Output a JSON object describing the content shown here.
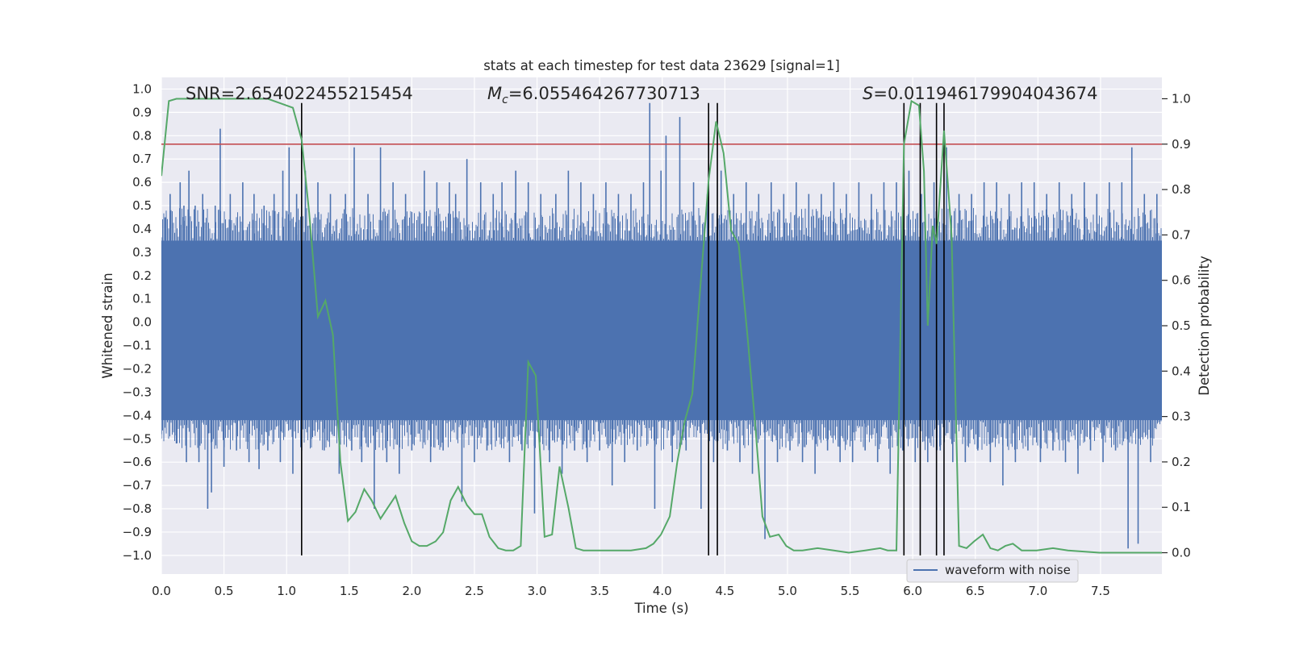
{
  "chart_data": {
    "type": "line",
    "title": "stats at each timestep for test data 23629 [signal=1]",
    "xlabel": "Time (s)",
    "ylabel": "Whitened strain",
    "y2label": "Detection probability",
    "xlim": [
      0,
      7.99
    ],
    "ylim": [
      -1.08,
      1.05
    ],
    "y2lim": [
      -0.047,
      1.047
    ],
    "x_ticks": [
      0.0,
      0.5,
      1.0,
      1.5,
      2.0,
      2.5,
      3.0,
      3.5,
      4.0,
      4.5,
      5.0,
      5.5,
      6.0,
      6.5,
      7.0,
      7.5
    ],
    "x_tick_labels": [
      "0.0",
      "0.5",
      "1.0",
      "1.5",
      "2.0",
      "2.5",
      "3.0",
      "3.5",
      "4.0",
      "4.5",
      "5.0",
      "5.5",
      "6.0",
      "6.5",
      "7.0",
      "7.5"
    ],
    "y_ticks": [
      1.0,
      0.9,
      0.8,
      0.7,
      0.6,
      0.5,
      0.4,
      0.3,
      0.2,
      0.1,
      0.0,
      -0.1,
      -0.2,
      -0.3,
      -0.4,
      -0.5,
      -0.6,
      -0.7,
      -0.8,
      -0.9,
      -1.0
    ],
    "y_tick_labels": [
      "1.0",
      "0.9",
      "0.8",
      "0.7",
      "0.6",
      "0.5",
      "0.4",
      "0.3",
      "0.2",
      "0.1",
      "0.0",
      "−0.1",
      "−0.2",
      "−0.3",
      "−0.4",
      "−0.5",
      "−0.6",
      "−0.7",
      "−0.8",
      "−0.9",
      "−1.0"
    ],
    "y2_ticks": [
      1.0,
      0.9,
      0.8,
      0.7,
      0.6,
      0.5,
      0.4,
      0.3,
      0.2,
      0.1,
      0.0
    ],
    "y2_tick_labels": [
      "1.0",
      "0.9",
      "0.8",
      "0.7",
      "0.6",
      "0.5",
      "0.4",
      "0.3",
      "0.2",
      "0.1",
      "0.0"
    ],
    "grid": true,
    "legend": {
      "position": "bottom-right",
      "entries": [
        "waveform with noise"
      ]
    },
    "annotations": {
      "snr": "SNR=2.654022455215454",
      "mc_symbol": "M",
      "mc_sub": "c",
      "mc_value": "=6.055464267730713",
      "s_symbol": "S",
      "s_value": "=0.011946179904043674"
    },
    "threshold": {
      "value": 0.9,
      "axis": "y2",
      "color": "#c44e52"
    },
    "vertical_markers": [
      1.12,
      4.37,
      4.44,
      5.93,
      6.06,
      6.19,
      6.25
    ],
    "vertical_marker_range": [
      -1.0,
      0.94
    ],
    "waveform": {
      "name": "waveform with noise",
      "color": "#4c72b0",
      "band_upper": 0.35,
      "band_lower": -0.42,
      "spikes": [
        {
          "t": 0.0,
          "v": -0.48
        },
        {
          "t": 0.03,
          "v": 0.45
        },
        {
          "t": 0.07,
          "v": 0.55
        },
        {
          "t": 0.12,
          "v": -0.52
        },
        {
          "t": 0.15,
          "v": 0.6
        },
        {
          "t": 0.18,
          "v": 0.5
        },
        {
          "t": 0.2,
          "v": -0.6
        },
        {
          "t": 0.22,
          "v": 0.65
        },
        {
          "t": 0.27,
          "v": 0.5
        },
        {
          "t": 0.3,
          "v": -0.6
        },
        {
          "t": 0.33,
          "v": 0.55
        },
        {
          "t": 0.37,
          "v": -0.8
        },
        {
          "t": 0.4,
          "v": -0.73
        },
        {
          "t": 0.43,
          "v": 0.5
        },
        {
          "t": 0.47,
          "v": 0.83
        },
        {
          "t": 0.5,
          "v": -0.62
        },
        {
          "t": 0.55,
          "v": 0.55
        },
        {
          "t": 0.6,
          "v": -0.55
        },
        {
          "t": 0.65,
          "v": 0.6
        },
        {
          "t": 0.7,
          "v": -0.6
        },
        {
          "t": 0.74,
          "v": 0.55
        },
        {
          "t": 0.78,
          "v": -0.63
        },
        {
          "t": 0.82,
          "v": 0.5
        },
        {
          "t": 0.85,
          "v": -0.55
        },
        {
          "t": 0.9,
          "v": 0.55
        },
        {
          "t": 0.95,
          "v": -0.6
        },
        {
          "t": 0.97,
          "v": 0.65
        },
        {
          "t": 1.02,
          "v": 0.75
        },
        {
          "t": 1.05,
          "v": -0.65
        },
        {
          "t": 1.08,
          "v": 0.55
        },
        {
          "t": 1.12,
          "v": -0.55
        },
        {
          "t": 1.15,
          "v": 0.65
        },
        {
          "t": 1.2,
          "v": -0.5
        },
        {
          "t": 1.25,
          "v": 0.6
        },
        {
          "t": 1.3,
          "v": -0.55
        },
        {
          "t": 1.35,
          "v": 0.55
        },
        {
          "t": 1.42,
          "v": -0.65
        },
        {
          "t": 1.47,
          "v": 0.55
        },
        {
          "t": 1.52,
          "v": -0.55
        },
        {
          "t": 1.54,
          "v": 0.75
        },
        {
          "t": 1.6,
          "v": -0.6
        },
        {
          "t": 1.65,
          "v": 0.55
        },
        {
          "t": 1.7,
          "v": -0.8
        },
        {
          "t": 1.75,
          "v": 0.75
        },
        {
          "t": 1.8,
          "v": -0.6
        },
        {
          "t": 1.85,
          "v": 0.6
        },
        {
          "t": 1.9,
          "v": -0.65
        },
        {
          "t": 1.95,
          "v": 0.55
        },
        {
          "t": 2.0,
          "v": -0.55
        },
        {
          "t": 2.1,
          "v": 0.65
        },
        {
          "t": 2.15,
          "v": -0.6
        },
        {
          "t": 2.2,
          "v": 0.6
        },
        {
          "t": 2.25,
          "v": -0.55
        },
        {
          "t": 2.3,
          "v": 0.6
        },
        {
          "t": 2.35,
          "v": 0.55
        },
        {
          "t": 2.4,
          "v": -0.77
        },
        {
          "t": 2.44,
          "v": 0.7
        },
        {
          "t": 2.5,
          "v": -0.6
        },
        {
          "t": 2.55,
          "v": 0.6
        },
        {
          "t": 2.6,
          "v": -0.55
        },
        {
          "t": 2.65,
          "v": 0.55
        },
        {
          "t": 2.72,
          "v": 0.6
        },
        {
          "t": 2.78,
          "v": -0.6
        },
        {
          "t": 2.83,
          "v": 0.65
        },
        {
          "t": 2.88,
          "v": -0.55
        },
        {
          "t": 2.93,
          "v": 0.6
        },
        {
          "t": 2.98,
          "v": -0.82
        },
        {
          "t": 3.03,
          "v": 0.55
        },
        {
          "t": 3.1,
          "v": -0.6
        },
        {
          "t": 3.15,
          "v": 0.55
        },
        {
          "t": 3.2,
          "v": -0.65
        },
        {
          "t": 3.25,
          "v": 0.65
        },
        {
          "t": 3.3,
          "v": -0.55
        },
        {
          "t": 3.35,
          "v": 0.6
        },
        {
          "t": 3.4,
          "v": -0.6
        },
        {
          "t": 3.45,
          "v": 0.55
        },
        {
          "t": 3.5,
          "v": -0.55
        },
        {
          "t": 3.55,
          "v": 0.6
        },
        {
          "t": 3.6,
          "v": -0.7
        },
        {
          "t": 3.65,
          "v": 0.55
        },
        {
          "t": 3.7,
          "v": -0.6
        },
        {
          "t": 3.75,
          "v": 0.55
        },
        {
          "t": 3.8,
          "v": -0.55
        },
        {
          "t": 3.85,
          "v": 0.6
        },
        {
          "t": 3.9,
          "v": 0.94
        },
        {
          "t": 3.94,
          "v": -0.8
        },
        {
          "t": 3.99,
          "v": 0.65
        },
        {
          "t": 4.03,
          "v": 0.8
        },
        {
          "t": 4.08,
          "v": -0.6
        },
        {
          "t": 4.14,
          "v": 0.88
        },
        {
          "t": 4.19,
          "v": -0.55
        },
        {
          "t": 4.25,
          "v": 0.6
        },
        {
          "t": 4.31,
          "v": -0.8
        },
        {
          "t": 4.36,
          "v": 0.55
        },
        {
          "t": 4.41,
          "v": -0.6
        },
        {
          "t": 4.47,
          "v": 0.65
        },
        {
          "t": 4.52,
          "v": -0.55
        },
        {
          "t": 4.57,
          "v": 0.55
        },
        {
          "t": 4.62,
          "v": -0.6
        },
        {
          "t": 4.67,
          "v": 0.6
        },
        {
          "t": 4.72,
          "v": -0.65
        },
        {
          "t": 4.77,
          "v": 0.55
        },
        {
          "t": 4.82,
          "v": -0.93
        },
        {
          "t": 4.87,
          "v": 0.6
        },
        {
          "t": 4.92,
          "v": -0.6
        },
        {
          "t": 4.97,
          "v": 0.55
        },
        {
          "t": 5.02,
          "v": -0.55
        },
        {
          "t": 5.07,
          "v": 0.6
        },
        {
          "t": 5.12,
          "v": -0.6
        },
        {
          "t": 5.17,
          "v": 0.55
        },
        {
          "t": 5.22,
          "v": -0.65
        },
        {
          "t": 5.27,
          "v": 0.55
        },
        {
          "t": 5.32,
          "v": -0.55
        },
        {
          "t": 5.37,
          "v": 0.6
        },
        {
          "t": 5.42,
          "v": -0.6
        },
        {
          "t": 5.47,
          "v": 0.55
        },
        {
          "t": 5.52,
          "v": -0.6
        },
        {
          "t": 5.57,
          "v": 0.6
        },
        {
          "t": 5.62,
          "v": -0.55
        },
        {
          "t": 5.67,
          "v": 0.55
        },
        {
          "t": 5.72,
          "v": -0.6
        },
        {
          "t": 5.77,
          "v": 0.6
        },
        {
          "t": 5.82,
          "v": -0.65
        },
        {
          "t": 5.87,
          "v": 0.6
        },
        {
          "t": 5.92,
          "v": -0.55
        },
        {
          "t": 5.97,
          "v": 0.65
        },
        {
          "t": 6.02,
          "v": -0.6
        },
        {
          "t": 6.07,
          "v": 0.55
        },
        {
          "t": 6.12,
          "v": -0.6
        },
        {
          "t": 6.17,
          "v": 0.6
        },
        {
          "t": 6.22,
          "v": -0.55
        },
        {
          "t": 6.27,
          "v": 0.75
        },
        {
          "t": 6.32,
          "v": -0.6
        },
        {
          "t": 6.37,
          "v": 0.55
        },
        {
          "t": 6.42,
          "v": -0.6
        },
        {
          "t": 6.47,
          "v": 0.55
        },
        {
          "t": 6.52,
          "v": -0.55
        },
        {
          "t": 6.57,
          "v": 0.6
        },
        {
          "t": 6.62,
          "v": -0.6
        },
        {
          "t": 6.67,
          "v": 0.6
        },
        {
          "t": 6.72,
          "v": -0.7
        },
        {
          "t": 6.77,
          "v": 0.55
        },
        {
          "t": 6.82,
          "v": -0.6
        },
        {
          "t": 6.87,
          "v": 0.6
        },
        {
          "t": 6.92,
          "v": -0.55
        },
        {
          "t": 6.97,
          "v": 0.6
        },
        {
          "t": 7.02,
          "v": -0.6
        },
        {
          "t": 7.07,
          "v": 0.55
        },
        {
          "t": 7.12,
          "v": -0.55
        },
        {
          "t": 7.17,
          "v": 0.6
        },
        {
          "t": 7.22,
          "v": -0.6
        },
        {
          "t": 7.27,
          "v": 0.55
        },
        {
          "t": 7.32,
          "v": -0.65
        },
        {
          "t": 7.37,
          "v": 0.6
        },
        {
          "t": 7.42,
          "v": -0.55
        },
        {
          "t": 7.47,
          "v": 0.55
        },
        {
          "t": 7.52,
          "v": -0.6
        },
        {
          "t": 7.57,
          "v": 0.6
        },
        {
          "t": 7.62,
          "v": -0.55
        },
        {
          "t": 7.67,
          "v": 0.6
        },
        {
          "t": 7.72,
          "v": -0.97
        },
        {
          "t": 7.75,
          "v": 0.75
        },
        {
          "t": 7.8,
          "v": -0.95
        },
        {
          "t": 7.85,
          "v": 0.55
        },
        {
          "t": 7.9,
          "v": -0.6
        },
        {
          "t": 7.95,
          "v": 0.55
        }
      ]
    },
    "probability": {
      "color": "#55a868",
      "points": [
        [
          0.0,
          0.83
        ],
        [
          0.06,
          0.995
        ],
        [
          0.12,
          1.0
        ],
        [
          0.5,
          1.0
        ],
        [
          0.85,
          1.0
        ],
        [
          0.95,
          0.99
        ],
        [
          1.05,
          0.98
        ],
        [
          1.12,
          0.91
        ],
        [
          1.18,
          0.75
        ],
        [
          1.25,
          0.52
        ],
        [
          1.31,
          0.555
        ],
        [
          1.37,
          0.48
        ],
        [
          1.43,
          0.2
        ],
        [
          1.49,
          0.07
        ],
        [
          1.55,
          0.09
        ],
        [
          1.62,
          0.14
        ],
        [
          1.68,
          0.115
        ],
        [
          1.75,
          0.075
        ],
        [
          1.81,
          0.1
        ],
        [
          1.87,
          0.125
        ],
        [
          1.94,
          0.065
        ],
        [
          2.0,
          0.025
        ],
        [
          2.06,
          0.015
        ],
        [
          2.12,
          0.015
        ],
        [
          2.19,
          0.025
        ],
        [
          2.25,
          0.045
        ],
        [
          2.31,
          0.115
        ],
        [
          2.37,
          0.145
        ],
        [
          2.44,
          0.105
        ],
        [
          2.5,
          0.085
        ],
        [
          2.56,
          0.085
        ],
        [
          2.62,
          0.035
        ],
        [
          2.69,
          0.01
        ],
        [
          2.75,
          0.005
        ],
        [
          2.81,
          0.005
        ],
        [
          2.87,
          0.015
        ],
        [
          2.93,
          0.42
        ],
        [
          2.99,
          0.39
        ],
        [
          3.06,
          0.035
        ],
        [
          3.12,
          0.04
        ],
        [
          3.18,
          0.19
        ],
        [
          3.25,
          0.1
        ],
        [
          3.31,
          0.01
        ],
        [
          3.37,
          0.005
        ],
        [
          3.5,
          0.005
        ],
        [
          3.75,
          0.005
        ],
        [
          3.87,
          0.01
        ],
        [
          3.93,
          0.02
        ],
        [
          3.99,
          0.04
        ],
        [
          4.06,
          0.08
        ],
        [
          4.12,
          0.2
        ],
        [
          4.18,
          0.29
        ],
        [
          4.24,
          0.35
        ],
        [
          4.3,
          0.57
        ],
        [
          4.37,
          0.82
        ],
        [
          4.43,
          0.95
        ],
        [
          4.49,
          0.88
        ],
        [
          4.55,
          0.71
        ],
        [
          4.61,
          0.68
        ],
        [
          4.68,
          0.48
        ],
        [
          4.74,
          0.29
        ],
        [
          4.8,
          0.08
        ],
        [
          4.86,
          0.035
        ],
        [
          4.93,
          0.04
        ],
        [
          4.99,
          0.015
        ],
        [
          5.05,
          0.005
        ],
        [
          5.12,
          0.005
        ],
        [
          5.24,
          0.01
        ],
        [
          5.37,
          0.005
        ],
        [
          5.49,
          0.0
        ],
        [
          5.62,
          0.005
        ],
        [
          5.74,
          0.01
        ],
        [
          5.8,
          0.005
        ],
        [
          5.87,
          0.005
        ],
        [
          5.93,
          0.9
        ],
        [
          5.99,
          0.995
        ],
        [
          6.05,
          0.985
        ],
        [
          6.09,
          0.84
        ],
        [
          6.12,
          0.5
        ],
        [
          6.16,
          0.72
        ],
        [
          6.19,
          0.68
        ],
        [
          6.25,
          0.93
        ],
        [
          6.31,
          0.7
        ],
        [
          6.37,
          0.015
        ],
        [
          6.43,
          0.01
        ],
        [
          6.49,
          0.025
        ],
        [
          6.56,
          0.04
        ],
        [
          6.62,
          0.01
        ],
        [
          6.68,
          0.005
        ],
        [
          6.74,
          0.015
        ],
        [
          6.8,
          0.02
        ],
        [
          6.87,
          0.005
        ],
        [
          6.99,
          0.005
        ],
        [
          7.12,
          0.01
        ],
        [
          7.24,
          0.005
        ],
        [
          7.49,
          0.0
        ],
        [
          7.74,
          0.0
        ],
        [
          7.86,
          0.0
        ],
        [
          7.99,
          0.0
        ]
      ]
    }
  }
}
